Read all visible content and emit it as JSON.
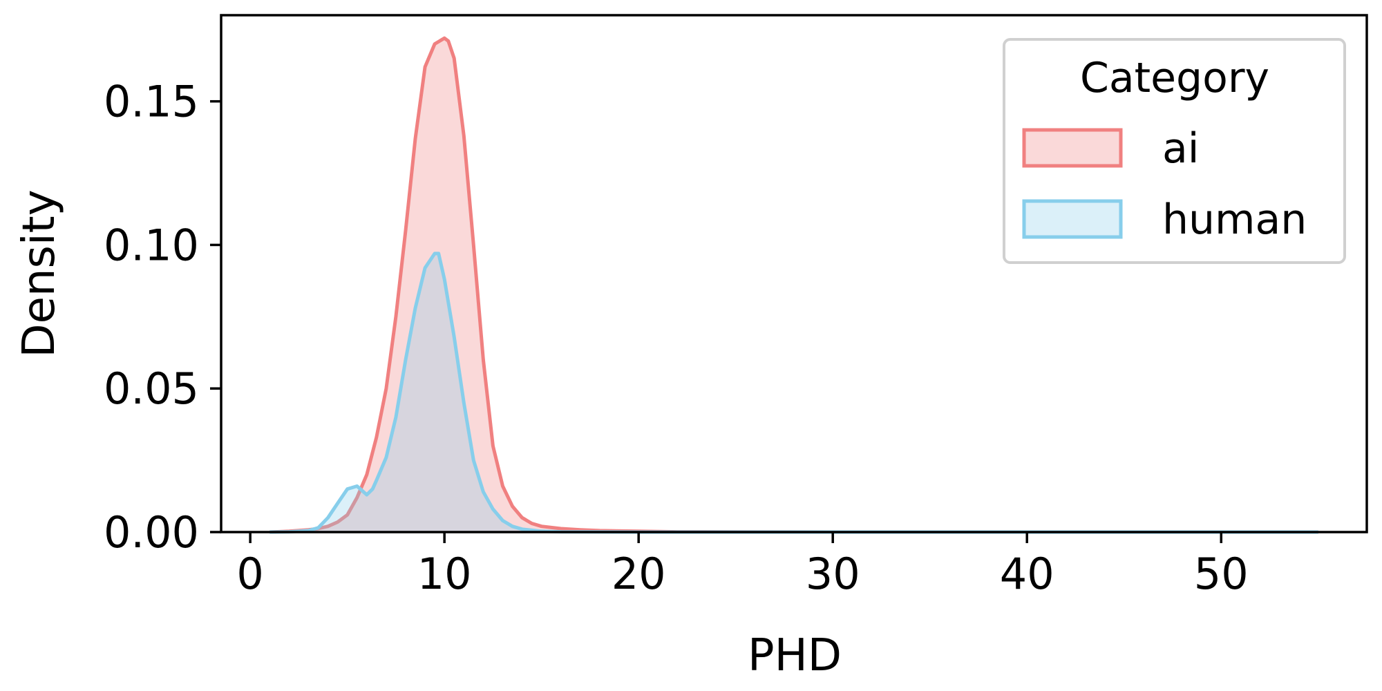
{
  "chart_data": {
    "type": "area",
    "xlabel": "PHD",
    "ylabel": "Density",
    "xlim": [
      -1.5,
      57.5
    ],
    "ylim": [
      0,
      0.18
    ],
    "x_ticks": [
      0,
      10,
      20,
      30,
      40,
      50
    ],
    "x_tick_labels": [
      "0",
      "10",
      "20",
      "30",
      "40",
      "50"
    ],
    "y_ticks": [
      0.0,
      0.05,
      0.1,
      0.15
    ],
    "y_tick_labels": [
      "0.00",
      "0.05",
      "0.10",
      "0.15"
    ],
    "grid": false,
    "legend": {
      "title": "Category",
      "placement": "top-right"
    },
    "series": [
      {
        "name": "ai",
        "line_color": "#f08080",
        "fill_color": "#f08080",
        "x": [
          1,
          2,
          3,
          3.5,
          4,
          4.5,
          5,
          5.5,
          6,
          6.5,
          7,
          7.5,
          8,
          8.5,
          9,
          9.5,
          10,
          10.2,
          10.5,
          11,
          11.5,
          12,
          12.5,
          13,
          13.5,
          14,
          14.5,
          15,
          16,
          17,
          18,
          20,
          22,
          25,
          30,
          40,
          55
        ],
        "y": [
          0.0,
          0.0003,
          0.0008,
          0.0012,
          0.002,
          0.0035,
          0.006,
          0.012,
          0.02,
          0.033,
          0.05,
          0.075,
          0.105,
          0.137,
          0.162,
          0.17,
          0.172,
          0.171,
          0.165,
          0.138,
          0.1,
          0.06,
          0.03,
          0.016,
          0.009,
          0.005,
          0.003,
          0.002,
          0.0012,
          0.0008,
          0.0005,
          0.0003,
          0.0001,
          5e-05,
          0.0,
          0.0,
          0.0
        ]
      },
      {
        "name": "human",
        "line_color": "#87ceeb",
        "fill_color": "#87ceeb",
        "x": [
          1,
          2,
          3,
          3.5,
          4,
          4.5,
          5,
          5.5,
          6,
          6.3,
          6.5,
          7,
          7.5,
          8,
          8.5,
          9,
          9.5,
          9.7,
          10,
          10.5,
          11,
          11.5,
          12,
          12.5,
          13,
          13.5,
          14,
          15,
          16,
          20,
          30,
          55
        ],
        "y": [
          0.0,
          0.0001,
          0.0005,
          0.0015,
          0.005,
          0.01,
          0.015,
          0.016,
          0.013,
          0.015,
          0.018,
          0.026,
          0.04,
          0.06,
          0.078,
          0.092,
          0.097,
          0.097,
          0.088,
          0.068,
          0.045,
          0.025,
          0.014,
          0.008,
          0.004,
          0.002,
          0.001,
          0.0003,
          0.0001,
          0.0,
          0.0,
          0.0
        ]
      }
    ]
  }
}
